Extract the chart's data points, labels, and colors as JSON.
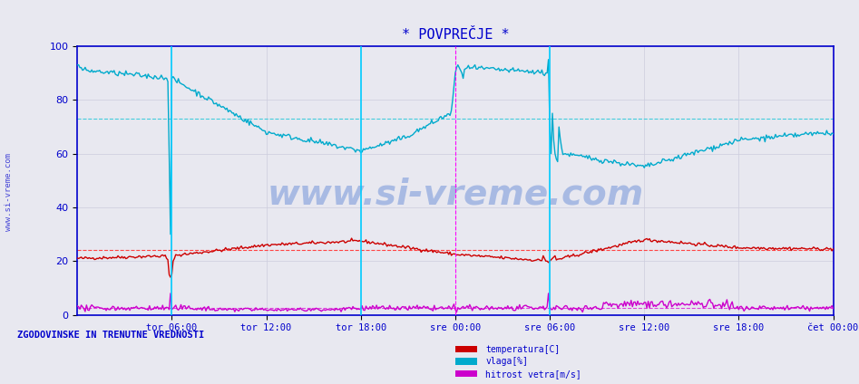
{
  "title": "* POVPREČJE *",
  "title_color": "#0000cc",
  "background_color": "#e8e8f0",
  "plot_bg_color": "#e8e8f0",
  "ylabel_left": "",
  "xlabel": "",
  "xlim": [
    0,
    576
  ],
  "ylim": [
    0,
    100
  ],
  "yticks": [
    0,
    20,
    40,
    60,
    80,
    100
  ],
  "x_tick_labels": [
    "tor 06:00",
    "tor 12:00",
    "tor 18:00",
    "sre 00:00",
    "sre 06:00",
    "sre 12:00",
    "sre 18:00",
    "čet 00:00"
  ],
  "x_tick_positions": [
    72,
    144,
    216,
    288,
    360,
    432,
    504,
    576
  ],
  "temp_avg_line": 24.0,
  "vlaga_avg_line": 73.0,
  "hitrost_avg_line": 2.5,
  "temp_color": "#cc0000",
  "vlaga_color": "#00aacc",
  "hitrost_color": "#cc00cc",
  "temp_avg_color": "#ff4444",
  "vlaga_avg_color": "#44ccdd",
  "hitrost_avg_color": "#dd44dd",
  "vertical_line_color_cyan": "#00ccff",
  "vertical_line_color_magenta": "#ff00ff",
  "grid_color": "#ccccdd",
  "axis_color": "#0000cc",
  "watermark_text": "www.si-vreme.com",
  "watermark_color": "#3366cc",
  "watermark_alpha": 0.35,
  "side_text": "www.si-vreme.com",
  "left_label": "ZGODOVINSKE IN TRENUTNE VREDNOSTI",
  "legend_labels": [
    "temperatura[C]",
    "vlaga[%]",
    "hitrost vetra[m/s]"
  ],
  "legend_colors": [
    "#cc0000",
    "#00aacc",
    "#cc00cc"
  ]
}
